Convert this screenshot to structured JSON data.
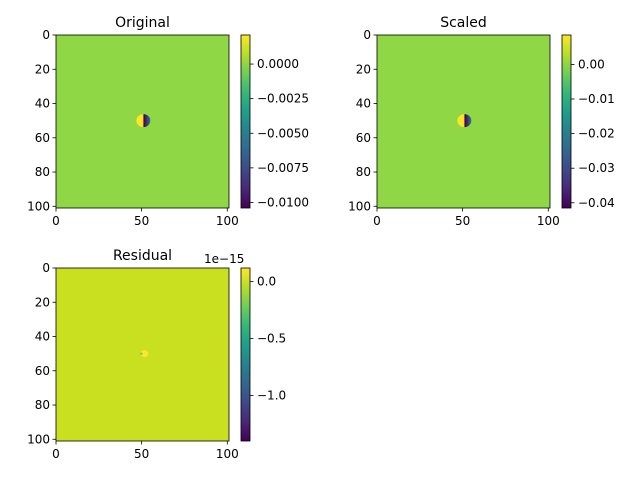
{
  "chart_data": [
    {
      "type": "heatmap",
      "title": "Original",
      "xlabel": "",
      "ylabel": "",
      "xlim": [
        0,
        101
      ],
      "ylim": [
        101,
        0
      ],
      "x_ticks": [
        0,
        50,
        100
      ],
      "y_ticks": [
        0,
        20,
        40,
        60,
        80,
        100
      ],
      "background_color": "#8fd744",
      "feature": {
        "center_x": 51,
        "center_y": 50,
        "hot_color": "#fde725",
        "cold_color": "#440154"
      },
      "colorbar": {
        "vmin": -0.0104,
        "vmax": 0.0021,
        "ticks": [
          0.0,
          -0.0025,
          -0.005,
          -0.0075,
          -0.01
        ],
        "tick_labels": [
          "0.0000",
          "−0.0025",
          "−0.0050",
          "−0.0075",
          "−0.0100"
        ],
        "offset_text": ""
      }
    },
    {
      "type": "heatmap",
      "title": "Scaled",
      "xlabel": "",
      "ylabel": "",
      "xlim": [
        0,
        101
      ],
      "ylim": [
        101,
        0
      ],
      "x_ticks": [
        0,
        50,
        100
      ],
      "y_ticks": [
        0,
        20,
        40,
        60,
        80,
        100
      ],
      "background_color": "#8fd744",
      "feature": {
        "center_x": 51,
        "center_y": 50,
        "hot_color": "#fde725",
        "cold_color": "#440154"
      },
      "colorbar": {
        "vmin": -0.0415,
        "vmax": 0.0085,
        "ticks": [
          0.0,
          -0.01,
          -0.02,
          -0.03,
          -0.04
        ],
        "tick_labels": [
          "0.00",
          "−0.01",
          "−0.02",
          "−0.03",
          "−0.04"
        ],
        "offset_text": ""
      }
    },
    {
      "type": "heatmap",
      "title": "Residual",
      "xlabel": "",
      "ylabel": "",
      "xlim": [
        0,
        101
      ],
      "ylim": [
        101,
        0
      ],
      "x_ticks": [
        0,
        50,
        100
      ],
      "y_ticks": [
        0,
        20,
        40,
        60,
        80,
        100
      ],
      "background_color": "#c8e020",
      "feature": {
        "center_x": 51,
        "center_y": 50,
        "hot_color": "#fde725",
        "cold_color": "#5ec962"
      },
      "colorbar": {
        "vmin": -1.4,
        "vmax": 0.12,
        "ticks": [
          0.0,
          -0.5,
          -1.0
        ],
        "tick_labels": [
          "0.0",
          "−0.5",
          "−1.0"
        ],
        "offset_text": "1e−15"
      }
    }
  ]
}
